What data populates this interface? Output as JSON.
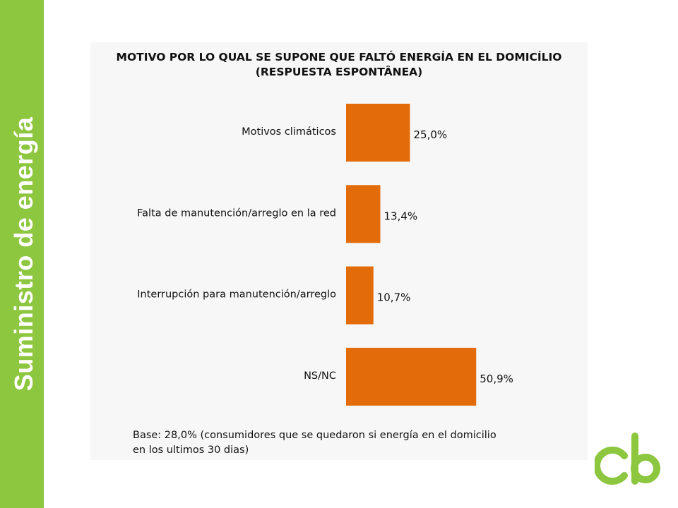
{
  "sidebar": {
    "title": "Suministro de energía",
    "color": "#8dc63f"
  },
  "chart_data": {
    "type": "bar",
    "orientation": "horizontal",
    "title_line1": "MOTIVO POR LO QUAL SE SUPONE QUE FALTÓ ENERGÍA EN EL DOMICÍLIO",
    "title_line2": "(RESPUESTA ESPONTÂNEA)",
    "categories": [
      "Motivos climáticos",
      "Falta de manutención/arreglo en la red",
      "Interrupción para manutención/arreglo",
      "NS/NC"
    ],
    "values": [
      25.0,
      13.4,
      10.7,
      50.9
    ],
    "value_labels": [
      "25,0%",
      "13,4%",
      "10,7%",
      "50,9%"
    ],
    "xlim": [
      0,
      100
    ],
    "bar_color": "#e36c0a",
    "grid": false,
    "note_line1": "Base: 28,0% (consumidores que se quedaron si energía en el domicilio",
    "note_line2": "en los ultimos 30 dias)"
  },
  "logo": {
    "name": "cb-logo",
    "color": "#8dc63f"
  }
}
